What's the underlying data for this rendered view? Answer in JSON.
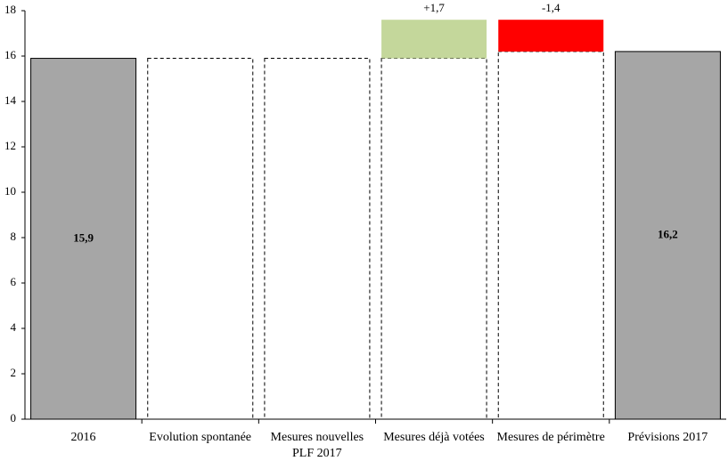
{
  "chart_data": {
    "type": "waterfall",
    "categories": [
      "2016",
      "Evolution spontanée",
      "Mesures nouvelles PLF 2017",
      "Mesures déjà votées",
      "Mesures de périmètre",
      "Prévisions 2017"
    ],
    "values": [
      15.9,
      0,
      0,
      1.7,
      -1.4,
      16.2
    ],
    "value_labels": [
      "15,9",
      null,
      null,
      "+1,7",
      "-1,4",
      "16,2"
    ],
    "colors": {
      "total": "#a6a6a6",
      "increase": "#c4d79b",
      "decrease": "#ff0000"
    },
    "ylim": [
      0,
      18
    ],
    "yticks": [
      0,
      2,
      4,
      6,
      8,
      10,
      12,
      14,
      16,
      18
    ],
    "grid": false
  }
}
